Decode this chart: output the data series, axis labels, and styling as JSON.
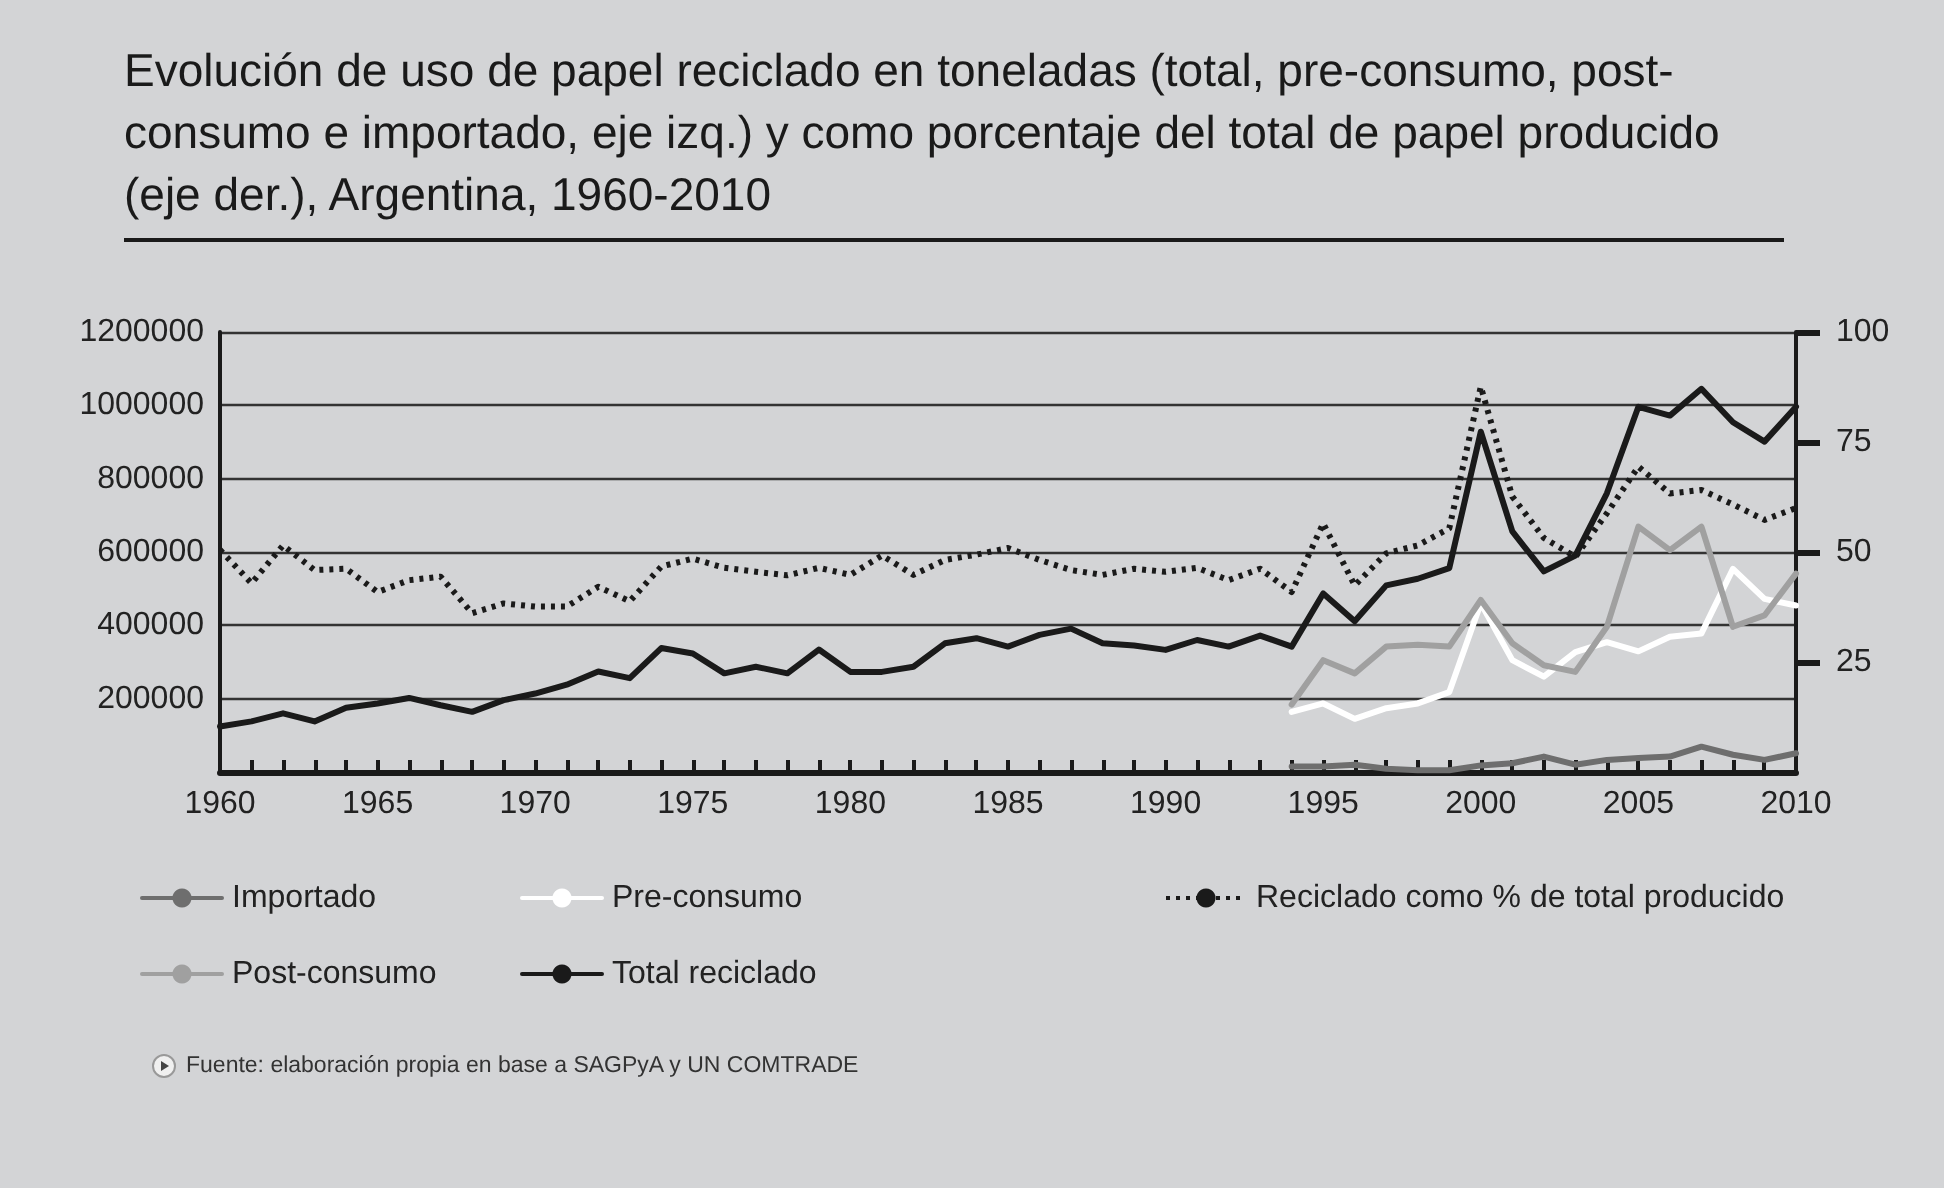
{
  "chart_data": {
    "type": "line",
    "title": "Evolución de uso de papel reciclado en toneladas (total, pre-consumo, post-consumo e importado, eje izq.) y como porcentaje del total de papel producido (eje der.), Argentina, 1960-2010",
    "annotations": [
      "Fuente: elaboración propia en base a SAGPyA y UN COMTRADE"
    ],
    "x": [
      1960,
      1961,
      1962,
      1963,
      1964,
      1965,
      1966,
      1967,
      1968,
      1969,
      1970,
      1971,
      1972,
      1973,
      1974,
      1975,
      1976,
      1977,
      1978,
      1979,
      1980,
      1981,
      1982,
      1983,
      1984,
      1985,
      1986,
      1987,
      1988,
      1989,
      1990,
      1991,
      1992,
      1993,
      1994,
      1995,
      1996,
      1997,
      1998,
      1999,
      2000,
      2001,
      2002,
      2003,
      2004,
      2005,
      2006,
      2007,
      2008,
      2009,
      2010
    ],
    "series": [
      {
        "name": "Importado",
        "color": "#6e6e6e",
        "values": [
          null,
          null,
          null,
          null,
          null,
          null,
          null,
          null,
          null,
          null,
          null,
          null,
          null,
          null,
          null,
          null,
          null,
          null,
          null,
          null,
          null,
          null,
          null,
          null,
          null,
          null,
          null,
          null,
          null,
          null,
          null,
          null,
          null,
          null,
          15000,
          15000,
          20000,
          9000,
          5000,
          5000,
          18000,
          24000,
          42000,
          20000,
          33000,
          38000,
          42000,
          69000,
          47000,
          33000,
          51000
        ]
      },
      {
        "name": "Pre-consumo",
        "color": "#ffffff",
        "values": [
          null,
          null,
          null,
          null,
          null,
          null,
          null,
          null,
          null,
          null,
          null,
          null,
          null,
          null,
          null,
          null,
          null,
          null,
          null,
          null,
          null,
          null,
          null,
          null,
          null,
          null,
          null,
          null,
          null,
          null,
          null,
          null,
          null,
          null,
          164000,
          187000,
          145000,
          174000,
          187000,
          218000,
          460000,
          305000,
          260000,
          327000,
          354000,
          329000,
          369000,
          378000,
          554000,
          472000,
          454000
        ]
      },
      {
        "name": "Reciclado como % de total producido",
        "color": "#1a1a1a",
        "axis": "y2",
        "line_style": "dotted",
        "values": [
          50.5,
          42.9,
          51.5,
          45.9,
          46.2,
          40.9,
          43.6,
          44.4,
          36.1,
          38.3,
          37.6,
          37.6,
          42.1,
          38.8,
          46.7,
          48.5,
          46.4,
          45.5,
          44.7,
          46.4,
          44.8,
          49.2,
          44.8,
          48.2,
          49.4,
          50.9,
          48.2,
          45.9,
          44.8,
          46.2,
          45.5,
          46.4,
          43.6,
          46.2,
          40.9,
          56.5,
          42.4,
          49.7,
          51.5,
          55.4,
          87.6,
          62.6,
          53.2,
          48.9,
          58.8,
          69.4,
          63.3,
          64.1,
          60.8,
          57.3,
          60.0
        ]
      },
      {
        "name": "Post-consumo",
        "color": "#a0a0a0",
        "values": [
          null,
          null,
          null,
          null,
          null,
          null,
          null,
          null,
          null,
          null,
          null,
          null,
          null,
          null,
          null,
          null,
          null,
          null,
          null,
          null,
          null,
          null,
          null,
          null,
          null,
          null,
          null,
          null,
          null,
          null,
          null,
          null,
          null,
          null,
          184000,
          305000,
          269000,
          342000,
          347000,
          342000,
          469000,
          351000,
          291000,
          273000,
          396000,
          669000,
          605000,
          669000,
          396000,
          427000,
          541000
        ]
      },
      {
        "name": "Total reciclado",
        "color": "#1a1a1a",
        "values": [
          124000,
          138000,
          160000,
          138000,
          175000,
          187000,
          202000,
          182000,
          164000,
          196000,
          214000,
          238000,
          274000,
          256000,
          338000,
          323000,
          269000,
          287000,
          269000,
          334000,
          273000,
          273000,
          287000,
          351000,
          365000,
          342000,
          374000,
          391000,
          351000,
          345000,
          333000,
          360000,
          342000,
          372000,
          342000,
          487000,
          411000,
          509000,
          527000,
          556000,
          928000,
          656000,
          547000,
          590000,
          760000,
          996000,
          972000,
          1045000,
          954000,
          901000,
          996000
        ]
      }
    ],
    "xlim": [
      1960,
      2010
    ],
    "xticks": [
      1960,
      {
        "value": 1961,
        "label": null
      },
      {
        "value": 1962,
        "label": null
      },
      {
        "value": 1963,
        "label": null
      },
      {
        "value": 1964,
        "label": null
      },
      1965,
      {
        "value": 1966,
        "label": null
      },
      {
        "value": 1967,
        "label": null
      },
      {
        "value": 1968,
        "label": null
      },
      {
        "value": 1969,
        "label": null
      },
      1970,
      {
        "value": 1971,
        "label": null
      },
      {
        "value": 1972,
        "label": null
      },
      {
        "value": 1973,
        "label": null
      },
      {
        "value": 1974,
        "label": null
      },
      1975,
      {
        "value": 1976,
        "label": null
      },
      {
        "value": 1977,
        "label": null
      },
      {
        "value": 1978,
        "label": null
      },
      {
        "value": 1979,
        "label": null
      },
      1980,
      {
        "value": 1981,
        "label": null
      },
      {
        "value": 1982,
        "label": null
      },
      {
        "value": 1983,
        "label": null
      },
      {
        "value": 1984,
        "label": null
      },
      1985,
      {
        "value": 1986,
        "label": null
      },
      {
        "value": 1987,
        "label": null
      },
      {
        "value": 1988,
        "label": null
      },
      {
        "value": 1989,
        "label": null
      },
      1990,
      {
        "value": 1991,
        "label": null
      },
      {
        "value": 1992,
        "label": null
      },
      {
        "value": 1993,
        "label": null
      },
      {
        "value": 1994,
        "label": null
      },
      1995,
      {
        "value": 1996,
        "label": null
      },
      {
        "value": 1997,
        "label": null
      },
      {
        "value": 1998,
        "label": null
      },
      {
        "value": 1999,
        "label": null
      },
      2000,
      {
        "value": 2001,
        "label": null
      },
      {
        "value": 2002,
        "label": null
      },
      {
        "value": 2003,
        "label": null
      },
      {
        "value": 2004,
        "label": null
      },
      2005,
      {
        "value": 2006,
        "label": null
      },
      {
        "value": 2007,
        "label": null
      },
      {
        "value": 2008,
        "label": null
      },
      {
        "value": 2009,
        "label": null
      },
      2010
    ],
    "ylim": [
      0,
      1200000
    ],
    "yticks": [
      200000,
      400000,
      600000,
      800000,
      1000000,
      1200000
    ],
    "y2lim": [
      0,
      100
    ],
    "y2ticks": [
      25,
      50,
      75,
      100
    ],
    "grid": "y",
    "legend": "bottom",
    "marker": "none",
    "line_style": "solid"
  }
}
